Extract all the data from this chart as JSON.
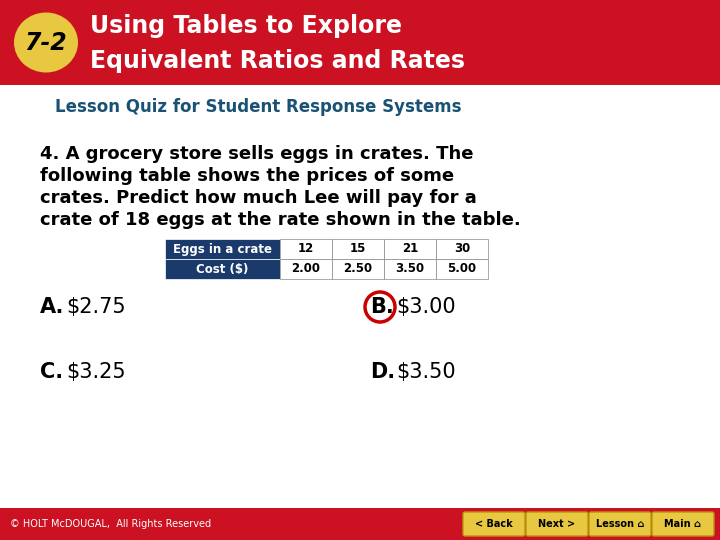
{
  "header_bg": "#cc1122",
  "header_text_color": "#ffffff",
  "badge_bg": "#e8c840",
  "badge_text": "7-2",
  "title_line1": "Using Tables to Explore",
  "title_line2": "Equivalent Ratios and Rates",
  "subtitle": "Lesson Quiz for Student Response Systems",
  "subtitle_color": "#1a5276",
  "body_bg": "#ffffff",
  "question_text_lines": [
    "4. A grocery store sells eggs in crates. The",
    "following table shows the prices of some",
    "crates. Predict how much Lee will pay for a",
    "crate of 18 eggs at the rate shown in the table."
  ],
  "question_color": "#000000",
  "table_header_bg": "#1a3a6b",
  "table_header_text": "#ffffff",
  "table_row_labels": [
    "Eggs in a crate",
    "Cost ($)"
  ],
  "table_data": [
    [
      "12",
      "15",
      "21",
      "30"
    ],
    [
      "2.00",
      "2.50",
      "3.50",
      "5.00"
    ]
  ],
  "answer_A_label": "A.",
  "answer_A_text": "$2.75",
  "answer_B_label": "B.",
  "answer_B_text": "$3.00",
  "answer_C_label": "C.",
  "answer_C_text": "$3.25",
  "answer_D_label": "D.",
  "answer_D_text": "$3.50",
  "circle_answer": "B",
  "circle_color": "#cc0000",
  "footer_bg": "#cc1122",
  "footer_text": "© HOLT McDOUGAL,  All Rights Reserved",
  "footer_text_color": "#ffffff",
  "footer_buttons": [
    "< Back",
    "Next >",
    "Lesson ⌂",
    "Main ⌂"
  ],
  "footer_button_bg": "#e8c840",
  "footer_button_text": "#000000"
}
